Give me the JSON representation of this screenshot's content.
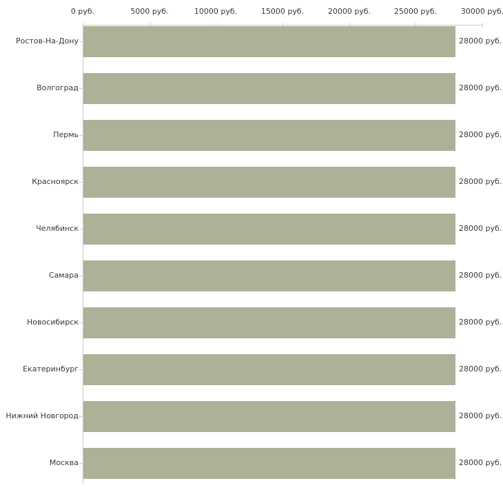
{
  "chart_data": {
    "type": "bar",
    "orientation": "horizontal",
    "title": "",
    "xlabel": "",
    "ylabel": "",
    "unit": "руб.",
    "categories": [
      "Ростов-На-Дону",
      "Волгоград",
      "Пермь",
      "Красноярск",
      "Челябинск",
      "Самара",
      "Новосибирск",
      "Екатеринбург",
      "Нижний Новгород",
      "Москва"
    ],
    "values": [
      28000,
      28000,
      28000,
      28000,
      28000,
      28000,
      28000,
      28000,
      28000,
      28000
    ],
    "value_labels": [
      "28000 руб.",
      "28000 руб.",
      "28000 руб.",
      "28000 руб.",
      "28000 руб.",
      "28000 руб.",
      "28000 руб.",
      "28000 руб.",
      "28000 руб.",
      "28000 руб."
    ],
    "xlim": [
      0,
      30000
    ],
    "xticks": [
      0,
      5000,
      10000,
      15000,
      20000,
      25000,
      30000
    ],
    "xtick_labels": [
      "0 руб.",
      "5000 руб.",
      "10000 руб.",
      "15000 руб.",
      "20000 руб.",
      "25000 руб.",
      "30000 руб."
    ],
    "grid": false,
    "legend_position": "none",
    "axis_position": "top",
    "colors": {
      "bar": "#acb298",
      "axis_border": "#c9c9c9",
      "tick_mark": "#ccd0b6",
      "label_text": "#383838"
    }
  }
}
